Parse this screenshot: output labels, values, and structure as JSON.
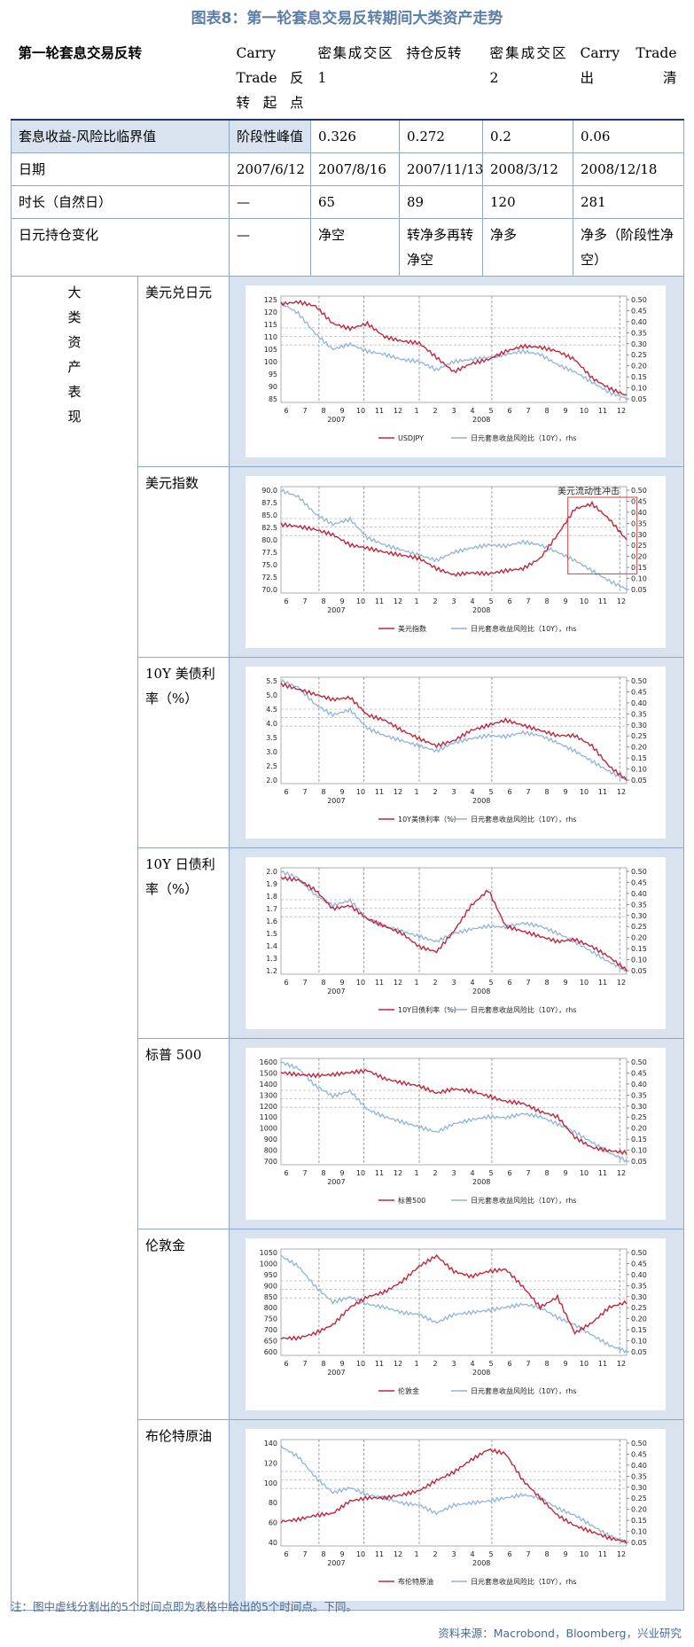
{
  "title": "图表8：第一轮套息交易反转期间大类资产走势",
  "table": {
    "header": [
      "第一轮套息交易反转",
      "Carry Trade 反转起点",
      "密集成交区1",
      "持仓反转",
      "密集成交区2",
      "Carry Trade 出清"
    ],
    "rows": [
      {
        "label": "套息收益-风险比临界值",
        "cells": [
          "阶段性峰值",
          "0.326",
          "0.272",
          "0.2",
          "0.06"
        ]
      },
      {
        "label": "日期",
        "cells": [
          "2007/6/12",
          "2007/8/16",
          "2007/11/13",
          "2008/3/12",
          "2008/12/18"
        ]
      },
      {
        "label": "时长（自然日）",
        "cells": [
          "—",
          "65",
          "89",
          "120",
          "281"
        ]
      },
      {
        "label": "日元持仓变化",
        "cells": [
          "—",
          "净空",
          "转净多再转净空",
          "净多",
          "净多（阶段性净空）"
        ]
      }
    ],
    "category_label": "大类资产表现",
    "category_chars": [
      "大",
      "类",
      "资",
      "产",
      "表",
      "现"
    ]
  },
  "x_axis": {
    "months": [
      "6",
      "7",
      "8",
      "9",
      "10",
      "11",
      "12",
      "1",
      "2",
      "3",
      "4",
      "5",
      "6",
      "7",
      "8",
      "9",
      "10",
      "11",
      "12"
    ],
    "years": [
      "2007",
      "2008"
    ]
  },
  "colors": {
    "red": "#c0273d",
    "blue": "#8fb4d8",
    "grid": "#bbbbbb",
    "annot": "#d04040"
  },
  "charts": [
    {
      "name": "美元兑日元",
      "left_ticks": [
        "125",
        "120",
        "115",
        "110",
        "105",
        "100",
        "95",
        "90",
        "85"
      ],
      "right_ticks": [
        "0.50",
        "0.45",
        "0.40",
        "0.35",
        "0.30",
        "0.25",
        "0.20",
        "0.15",
        "0.10",
        "0.05"
      ],
      "legend_red": "USDJPY",
      "legend_blue": "日元套息收益风险比（10Y），rhs",
      "annotation": ""
    },
    {
      "name": "美元指数",
      "left_ticks": [
        "90.0",
        "87.5",
        "85.0",
        "82.5",
        "80.0",
        "77.5",
        "75.0",
        "72.5",
        "70.0"
      ],
      "right_ticks": [
        "0.50",
        "0.45",
        "0.40",
        "0.35",
        "0.30",
        "0.25",
        "0.20",
        "0.15",
        "0.10",
        "0.05"
      ],
      "legend_red": "美元指数",
      "legend_blue": "日元套息收益风险比（10Y），rhs",
      "annotation": "美元流动性冲击"
    },
    {
      "name": "10Y 美债利率（%）",
      "left_ticks": [
        "5.5",
        "5.0",
        "4.5",
        "4.0",
        "3.5",
        "3.0",
        "2.5",
        "2.0"
      ],
      "right_ticks": [
        "0.50",
        "0.45",
        "0.40",
        "0.35",
        "0.30",
        "0.25",
        "0.20",
        "0.15",
        "0.10",
        "0.05"
      ],
      "legend_red": "10Y美债利率（%）",
      "legend_blue": "日元套息收益风险比（10Y），rhs",
      "annotation": ""
    },
    {
      "name": "10Y 日债利率（%）",
      "left_ticks": [
        "2.0",
        "1.9",
        "1.8",
        "1.7",
        "1.6",
        "1.5",
        "1.4",
        "1.3",
        "1.2"
      ],
      "right_ticks": [
        "0.50",
        "0.45",
        "0.40",
        "0.35",
        "0.30",
        "0.25",
        "0.20",
        "0.15",
        "0.10",
        "0.05"
      ],
      "legend_red": "10Y日债利率（%）",
      "legend_blue": "日元套息收益风险比（10Y），rhs",
      "annotation": ""
    },
    {
      "name": "标普 500",
      "left_ticks": [
        "1600",
        "1500",
        "1400",
        "1300",
        "1200",
        "1100",
        "1000",
        "900",
        "800",
        "700"
      ],
      "right_ticks": [
        "0.50",
        "0.45",
        "0.40",
        "0.35",
        "0.30",
        "0.25",
        "0.20",
        "0.15",
        "0.10",
        "0.05"
      ],
      "legend_red": "标普500",
      "legend_blue": "日元套息收益风险比（10Y），rhs",
      "annotation": ""
    },
    {
      "name": "伦敦金",
      "left_ticks": [
        "1050",
        "1000",
        "950",
        "900",
        "850",
        "800",
        "750",
        "700",
        "650",
        "600"
      ],
      "right_ticks": [
        "0.50",
        "0.45",
        "0.40",
        "0.35",
        "0.30",
        "0.25",
        "0.20",
        "0.15",
        "0.10",
        "0.05"
      ],
      "legend_red": "伦敦金",
      "legend_blue": "日元套息收益风险比（10Y），rhs",
      "annotation": ""
    },
    {
      "name": "布伦特原油",
      "left_ticks": [
        "140",
        "120",
        "100",
        "80",
        "60",
        "40"
      ],
      "right_ticks": [
        "0.50",
        "0.45",
        "0.40",
        "0.35",
        "0.30",
        "0.25",
        "0.20",
        "0.15",
        "0.10",
        "0.05"
      ],
      "legend_red": "布伦特原油",
      "legend_blue": "日元套息收益风险比（10Y），rhs",
      "annotation": ""
    }
  ],
  "note": "注：图中虚线分割出的5个时间点即为表格中给出的5个时间点。下同。",
  "source": "资料来源：Macrobond，Bloomberg，兴业研究"
}
